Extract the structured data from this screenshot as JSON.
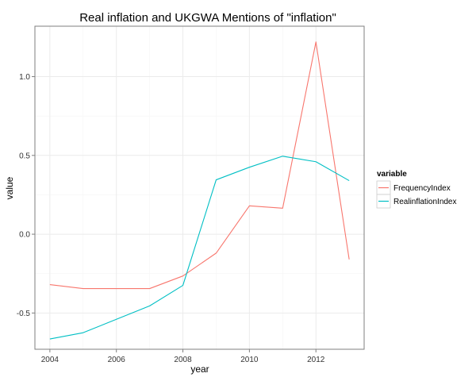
{
  "chart_data": {
    "type": "line",
    "title": "Real inflation and UKGWA Mentions of \"inflation\"",
    "xlabel": "year",
    "ylabel": "value",
    "x": [
      2004,
      2005,
      2006,
      2007,
      2008,
      2009,
      2010,
      2011,
      2012,
      2013
    ],
    "xlim": [
      2003.55,
      2013.45
    ],
    "ylim": [
      -0.73,
      1.32
    ],
    "xticks": [
      "2004",
      "2006",
      "2008",
      "2010",
      "2012"
    ],
    "yticks": [
      "-0.5",
      "0.0",
      "0.5",
      "1.0"
    ],
    "grid": true,
    "legend": {
      "title": "variable",
      "position": "right"
    },
    "series": [
      {
        "name": "FrequencyIndex",
        "color": "#f8766d",
        "values": [
          -0.32,
          -0.345,
          -0.345,
          -0.345,
          -0.265,
          -0.12,
          0.18,
          0.165,
          1.22,
          -0.16
        ]
      },
      {
        "name": "RealinflationIndex",
        "color": "#00bfc4",
        "values": [
          -0.665,
          -0.625,
          -0.54,
          -0.455,
          -0.325,
          0.345,
          0.425,
          0.495,
          0.46,
          0.34
        ]
      }
    ]
  }
}
